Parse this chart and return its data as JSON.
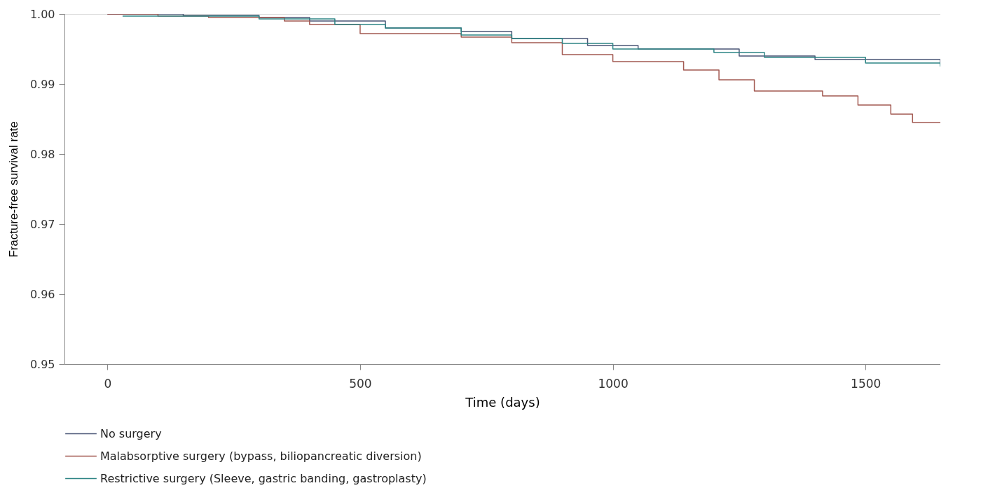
{
  "chart_data": {
    "type": "step",
    "xlabel": "Time (days)",
    "ylabel": "Fracture-free survival rate",
    "xlim": [
      -85,
      1648
    ],
    "ylim": [
      0.95,
      1.0
    ],
    "xticks": [
      0,
      500,
      1000,
      1500
    ],
    "yticks": [
      0.95,
      0.96,
      0.97,
      0.98,
      0.99,
      {
        "value": 1.0,
        "label": "1.00"
      }
    ],
    "grid": false,
    "legend": "bottom",
    "line_style": "solid",
    "marker": "none",
    "series": [
      {
        "name": "No surgery",
        "color": "#4a5676",
        "x": [
          0,
          150,
          300,
          400,
          550,
          700,
          800,
          950,
          1050,
          1250,
          1400,
          1648
        ],
        "values": [
          1.0,
          0.9998,
          0.9995,
          0.999,
          0.998,
          0.9975,
          0.9965,
          0.9955,
          0.995,
          0.994,
          0.9935,
          0.9928
        ]
      },
      {
        "name": "Malabsorptive surgery (bypass, biliopancreatic diversion)",
        "color": "#a35a52",
        "x": [
          0,
          100,
          200,
          350,
          400,
          500,
          700,
          800,
          900,
          1000,
          1140,
          1210,
          1280,
          1415,
          1485,
          1550,
          1593,
          1648
        ],
        "values": [
          1.0,
          0.9997,
          0.9995,
          0.999,
          0.9985,
          0.9972,
          0.9967,
          0.9959,
          0.9942,
          0.9932,
          0.992,
          0.9906,
          0.989,
          0.9883,
          0.987,
          0.9857,
          0.9845,
          0.9845
        ]
      },
      {
        "name": "Restrictive surgery (Sleeve, gastric banding, gastroplasty)",
        "color": "#2e8585",
        "x": [
          30,
          300,
          450,
          550,
          700,
          800,
          900,
          1000,
          1200,
          1300,
          1500,
          1648
        ],
        "values": [
          0.9997,
          0.9993,
          0.9985,
          0.998,
          0.997,
          0.9965,
          0.9958,
          0.995,
          0.9945,
          0.9938,
          0.993,
          0.9925
        ]
      }
    ]
  }
}
